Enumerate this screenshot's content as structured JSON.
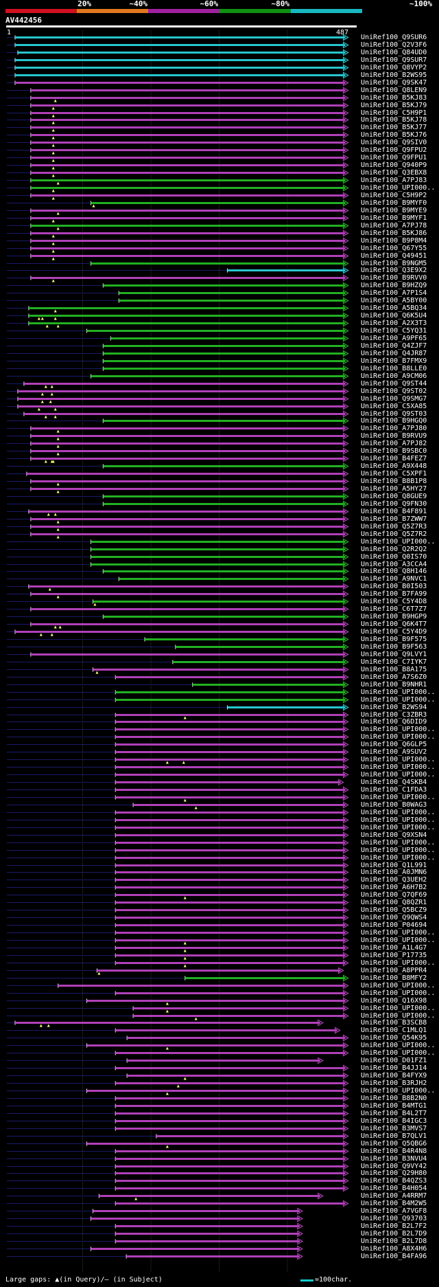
{
  "legend": {
    "labels": [
      "20%",
      "~40%",
      "~60%",
      "~80%",
      "~100%"
    ],
    "colors": [
      "#d01020",
      "#e07820",
      "#a020a0",
      "#119011",
      "#18b8c0"
    ]
  },
  "query": {
    "id": "AV442456",
    "start": "1",
    "end": "487"
  },
  "footer": {
    "gaps_text": "Large gaps: ▲(in Query)/– (in Subject)",
    "scale_text": "=100char."
  },
  "hits": [
    {
      "id": "UniRef100_Q9SUR6",
      "s": 1,
      "e": 487,
      "c": "c"
    },
    {
      "id": "UniRef100_Q2V3F6",
      "s": 1,
      "e": 487,
      "c": "c"
    },
    {
      "id": "UniRef100_Q84UD0",
      "s": 5,
      "e": 487,
      "c": "c"
    },
    {
      "id": "UniRef100_Q9SUR7",
      "s": 1,
      "e": 487,
      "c": "c"
    },
    {
      "id": "UniRef100_Q8VYP2",
      "s": 1,
      "e": 487,
      "c": "c"
    },
    {
      "id": "UniRef100_B2WS95",
      "s": 1,
      "e": 487,
      "c": "c"
    },
    {
      "id": "UniRef100_Q9SK47",
      "s": 1,
      "e": 487,
      "c": "p"
    },
    {
      "id": "UniRef100_Q8LEN9",
      "s": 24,
      "e": 487,
      "c": "p"
    },
    {
      "id": "UniRef100_B5KJ83",
      "s": 24,
      "e": 487,
      "c": "p",
      "g": [
        60
      ]
    },
    {
      "id": "UniRef100_B5KJ79",
      "s": 24,
      "e": 487,
      "c": "p",
      "g": [
        57
      ]
    },
    {
      "id": "UniRef100_C5H9P1",
      "s": 24,
      "e": 487,
      "c": "p",
      "g": [
        57
      ]
    },
    {
      "id": "UniRef100_B5KJ78",
      "s": 24,
      "e": 487,
      "c": "p",
      "g": [
        57
      ]
    },
    {
      "id": "UniRef100_B5KJ77",
      "s": 24,
      "e": 487,
      "c": "p",
      "g": [
        57
      ]
    },
    {
      "id": "UniRef100_B5KJ76",
      "s": 24,
      "e": 487,
      "c": "p",
      "g": [
        57
      ]
    },
    {
      "id": "UniRef100_Q9SIV0",
      "s": 24,
      "e": 487,
      "c": "p",
      "g": [
        57
      ]
    },
    {
      "id": "UniRef100_Q9FPU2",
      "s": 24,
      "e": 487,
      "c": "p",
      "g": [
        57
      ]
    },
    {
      "id": "UniRef100_Q9FPU1",
      "s": 24,
      "e": 487,
      "c": "p",
      "g": [
        57
      ]
    },
    {
      "id": "UniRef100_Q940P9",
      "s": 24,
      "e": 487,
      "c": "p",
      "g": [
        57
      ]
    },
    {
      "id": "UniRef100_Q3EBX8",
      "s": 24,
      "e": 487,
      "c": "p",
      "g": [
        57
      ]
    },
    {
      "id": "UniRef100_A7PJ83",
      "s": 24,
      "e": 487,
      "c": "g",
      "g": [
        64
      ]
    },
    {
      "id": "UniRef100_UPI000..",
      "s": 24,
      "e": 487,
      "c": "g",
      "g": [
        57
      ]
    },
    {
      "id": "UniRef100_C5H9P2",
      "s": 24,
      "e": 487,
      "c": "p",
      "g": [
        57
      ]
    },
    {
      "id": "UniRef100_B9MYF0",
      "s": 112,
      "e": 487,
      "c": "g",
      "g": [
        116
      ]
    },
    {
      "id": "UniRef100_B9MYE9",
      "s": 24,
      "e": 487,
      "c": "p",
      "g": [
        64
      ]
    },
    {
      "id": "UniRef100_B9MYF1",
      "s": 24,
      "e": 487,
      "c": "p",
      "g": [
        57
      ]
    },
    {
      "id": "UniRef100_A7PJ78",
      "s": 24,
      "e": 487,
      "c": "g",
      "g": [
        64
      ]
    },
    {
      "id": "UniRef100_B5KJ86",
      "s": 24,
      "e": 487,
      "c": "p",
      "g": [
        57
      ]
    },
    {
      "id": "UniRef100_B9P8M4",
      "s": 24,
      "e": 487,
      "c": "p",
      "g": [
        57
      ]
    },
    {
      "id": "UniRef100_Q67Y55",
      "s": 24,
      "e": 487,
      "c": "p",
      "g": [
        57
      ]
    },
    {
      "id": "UniRef100_Q49451",
      "s": 24,
      "e": 487,
      "c": "p",
      "g": [
        57
      ]
    },
    {
      "id": "UniRef100_B9NGM5",
      "s": 112,
      "e": 487,
      "c": "g"
    },
    {
      "id": "UniRef100_Q3E9X2",
      "s": 312,
      "e": 487,
      "c": "c"
    },
    {
      "id": "UniRef100_B9RVV0",
      "s": 24,
      "e": 487,
      "c": "p",
      "g": [
        57
      ]
    },
    {
      "id": "UniRef100_B9HZQ9",
      "s": 130,
      "e": 487,
      "c": "g"
    },
    {
      "id": "UniRef100_A7P1S4",
      "s": 153,
      "e": 487,
      "c": "g"
    },
    {
      "id": "UniRef100_A5BY00",
      "s": 153,
      "e": 487,
      "c": "g"
    },
    {
      "id": "UniRef100_A5BQ34",
      "s": 21,
      "e": 487,
      "c": "g",
      "g": [
        60
      ]
    },
    {
      "id": "UniRef100_Q6K5U4",
      "s": 21,
      "e": 487,
      "c": "g",
      "g": [
        36,
        41,
        60
      ]
    },
    {
      "id": "UniRef100_A2X3T3",
      "s": 21,
      "e": 487,
      "c": "g",
      "g": [
        48,
        64
      ]
    },
    {
      "id": "UniRef100_C5YQ31",
      "s": 106,
      "e": 487,
      "c": "g"
    },
    {
      "id": "UniRef100_A9PF65",
      "s": 141,
      "e": 487,
      "c": "g"
    },
    {
      "id": "UniRef100_Q4ZJF7",
      "s": 130,
      "e": 487,
      "c": "g"
    },
    {
      "id": "UniRef100_Q4JR87",
      "s": 130,
      "e": 487,
      "c": "g"
    },
    {
      "id": "UniRef100_B7FMX9",
      "s": 130,
      "e": 487,
      "c": "g"
    },
    {
      "id": "UniRef100_B8LLE0",
      "s": 130,
      "e": 487,
      "c": "g"
    },
    {
      "id": "UniRef100_A9CM06",
      "s": 112,
      "e": 487,
      "c": "g"
    },
    {
      "id": "UniRef100_Q9ST44",
      "s": 14,
      "e": 487,
      "c": "p",
      "g": [
        46,
        55
      ]
    },
    {
      "id": "UniRef100_Q9ST02",
      "s": 5,
      "e": 487,
      "c": "p",
      "g": [
        41,
        55
      ]
    },
    {
      "id": "UniRef100_Q9SMG7",
      "s": 5,
      "e": 487,
      "c": "p",
      "g": [
        41,
        53
      ]
    },
    {
      "id": "UniRef100_C5XA85",
      "s": 5,
      "e": 487,
      "c": "p",
      "g": [
        36,
        60
      ]
    },
    {
      "id": "UniRef100_Q9ST03",
      "s": 14,
      "e": 487,
      "c": "p",
      "g": [
        46,
        60
      ]
    },
    {
      "id": "UniRef100_B9HGQ0",
      "s": 130,
      "e": 487,
      "c": "g"
    },
    {
      "id": "UniRef100_A7PJ80",
      "s": 24,
      "e": 487,
      "c": "p",
      "g": [
        64
      ]
    },
    {
      "id": "UniRef100_B9RVU9",
      "s": 24,
      "e": 487,
      "c": "p",
      "g": [
        64
      ]
    },
    {
      "id": "UniRef100_A7PJ82",
      "s": 24,
      "e": 487,
      "c": "p",
      "g": [
        64
      ]
    },
    {
      "id": "UniRef100_B9SBC0",
      "s": 24,
      "e": 487,
      "c": "p",
      "g": [
        64
      ]
    },
    {
      "id": "UniRef100_B4FEZ7",
      "s": 24,
      "e": 487,
      "c": "p",
      "g": [
        46,
        55,
        57
      ]
    },
    {
      "id": "UniRef100_A9X448",
      "s": 130,
      "e": 487,
      "c": "g"
    },
    {
      "id": "UniRef100_C5XPF1",
      "s": 18,
      "e": 487,
      "c": "p"
    },
    {
      "id": "UniRef100_B8B1P8",
      "s": 24,
      "e": 487,
      "c": "p",
      "g": [
        64
      ]
    },
    {
      "id": "UniRef100_A5HY27",
      "s": 24,
      "e": 487,
      "c": "p",
      "g": [
        64
      ]
    },
    {
      "id": "UniRef100_Q8GUE9",
      "s": 130,
      "e": 487,
      "c": "g"
    },
    {
      "id": "UniRef100_Q9FN30",
      "s": 130,
      "e": 487,
      "c": "g"
    },
    {
      "id": "UniRef100_B4F891",
      "s": 21,
      "e": 487,
      "c": "p",
      "g": [
        50,
        60
      ]
    },
    {
      "id": "UniRef100_B7ZWW7",
      "s": 24,
      "e": 487,
      "c": "p",
      "g": [
        64
      ]
    },
    {
      "id": "UniRef100_Q5Z7R3",
      "s": 24,
      "e": 487,
      "c": "p",
      "g": [
        64
      ]
    },
    {
      "id": "UniRef100_Q5Z7R2",
      "s": 24,
      "e": 487,
      "c": "p",
      "g": [
        64
      ]
    },
    {
      "id": "UniRef100_UPI000..",
      "s": 112,
      "e": 487,
      "c": "g"
    },
    {
      "id": "UniRef100_Q2R2Q2",
      "s": 112,
      "e": 487,
      "c": "g"
    },
    {
      "id": "UniRef100_Q0IS70",
      "s": 112,
      "e": 487,
      "c": "g"
    },
    {
      "id": "UniRef100_A3CCA4",
      "s": 112,
      "e": 487,
      "c": "g"
    },
    {
      "id": "UniRef100_Q8H146",
      "s": 130,
      "e": 487,
      "c": "g"
    },
    {
      "id": "UniRef100_A9NVC1",
      "s": 153,
      "e": 487,
      "c": "g"
    },
    {
      "id": "UniRef100_B0I503",
      "s": 21,
      "e": 487,
      "c": "p",
      "g": [
        52
      ]
    },
    {
      "id": "UniRef100_B7FA99",
      "s": 24,
      "e": 487,
      "c": "p",
      "g": [
        64
      ]
    },
    {
      "id": "UniRef100_C5Y4D8",
      "s": 115,
      "e": 487,
      "c": "g",
      "g": [
        118
      ]
    },
    {
      "id": "UniRef100_C6T7Z7",
      "s": 24,
      "e": 487,
      "c": "p"
    },
    {
      "id": "UniRef100_B9HGP9",
      "s": 130,
      "e": 487,
      "c": "g"
    },
    {
      "id": "UniRef100_Q6K4T7",
      "s": 24,
      "e": 487,
      "c": "p",
      "g": [
        60,
        67
      ]
    },
    {
      "id": "UniRef100_C5Y4D9",
      "s": 1,
      "e": 487,
      "c": "p",
      "g": [
        39,
        55
      ]
    },
    {
      "id": "UniRef100_B9F575",
      "s": 191,
      "e": 487,
      "c": "g"
    },
    {
      "id": "UniRef100_B9F563",
      "s": 236,
      "e": 487,
      "c": "g"
    },
    {
      "id": "UniRef100_Q9LVY1",
      "s": 24,
      "e": 487,
      "c": "p"
    },
    {
      "id": "UniRef100_C7IYK7",
      "s": 232,
      "e": 487,
      "c": "g"
    },
    {
      "id": "UniRef100_B8A175",
      "s": 115,
      "e": 487,
      "c": "p",
      "g": [
        121
      ]
    },
    {
      "id": "UniRef100_A7S6Z0",
      "s": 148,
      "e": 487,
      "c": "p"
    },
    {
      "id": "UniRef100_B9NHR1",
      "s": 261,
      "e": 487,
      "c": "g"
    },
    {
      "id": "UniRef100_UPI000..",
      "s": 148,
      "e": 487,
      "c": "g"
    },
    {
      "id": "UniRef100_UPI000..",
      "s": 148,
      "e": 487,
      "c": "g"
    },
    {
      "id": "UniRef100_B2WS94",
      "s": 312,
      "e": 487,
      "c": "c"
    },
    {
      "id": "UniRef100_C3ZBR3",
      "s": 148,
      "e": 487,
      "c": "p",
      "g": [
        250
      ]
    },
    {
      "id": "UniRef100_Q6DID9",
      "s": 148,
      "e": 487,
      "c": "p"
    },
    {
      "id": "UniRef100_UPI000..",
      "s": 148,
      "e": 487,
      "c": "p"
    },
    {
      "id": "UniRef100_UPI000..",
      "s": 148,
      "e": 487,
      "c": "p"
    },
    {
      "id": "UniRef100_Q6GLP5",
      "s": 148,
      "e": 487,
      "c": "p"
    },
    {
      "id": "UniRef100_A9SUV2",
      "s": 148,
      "e": 487,
      "c": "p"
    },
    {
      "id": "UniRef100_UPI000..",
      "s": 148,
      "e": 487,
      "c": "p",
      "g": [
        224,
        248
      ]
    },
    {
      "id": "UniRef100_UPI000..",
      "s": 148,
      "e": 487,
      "c": "p"
    },
    {
      "id": "UniRef100_UPI000..",
      "s": 148,
      "e": 487,
      "c": "p"
    },
    {
      "id": "UniRef100_Q4SKB4",
      "s": 148,
      "e": 480,
      "c": "p"
    },
    {
      "id": "UniRef100_C1FDA3",
      "s": 148,
      "e": 487,
      "c": "p"
    },
    {
      "id": "UniRef100_UPI000..",
      "s": 148,
      "e": 487,
      "c": "p",
      "g": [
        250
      ]
    },
    {
      "id": "UniRef100_B0WAG3",
      "s": 174,
      "e": 487,
      "c": "p",
      "g": [
        266
      ]
    },
    {
      "id": "UniRef100_UPI000..",
      "s": 148,
      "e": 487,
      "c": "p"
    },
    {
      "id": "UniRef100_UPI000..",
      "s": 148,
      "e": 487,
      "c": "p"
    },
    {
      "id": "UniRef100_UPI000..",
      "s": 148,
      "e": 487,
      "c": "p"
    },
    {
      "id": "UniRef100_Q9XSN4",
      "s": 148,
      "e": 487,
      "c": "p"
    },
    {
      "id": "UniRef100_UPI000..",
      "s": 148,
      "e": 487,
      "c": "p"
    },
    {
      "id": "UniRef100_UPI000..",
      "s": 148,
      "e": 487,
      "c": "p"
    },
    {
      "id": "UniRef100_UPI000..",
      "s": 148,
      "e": 487,
      "c": "p"
    },
    {
      "id": "UniRef100_Q1L991",
      "s": 148,
      "e": 487,
      "c": "p"
    },
    {
      "id": "UniRef100_A0JMN6",
      "s": 148,
      "e": 487,
      "c": "p"
    },
    {
      "id": "UniRef100_Q3UEH2",
      "s": 148,
      "e": 487,
      "c": "p"
    },
    {
      "id": "UniRef100_A6H7B2",
      "s": 148,
      "e": 487,
      "c": "p"
    },
    {
      "id": "UniRef100_Q7QF69",
      "s": 148,
      "e": 487,
      "c": "p",
      "g": [
        250
      ]
    },
    {
      "id": "UniRef100_Q8QZR1",
      "s": 148,
      "e": 487,
      "c": "p"
    },
    {
      "id": "UniRef100_Q5BCZ9",
      "s": 148,
      "e": 487,
      "c": "p"
    },
    {
      "id": "UniRef100_Q9QWS4",
      "s": 148,
      "e": 487,
      "c": "p"
    },
    {
      "id": "UniRef100_P04694",
      "s": 148,
      "e": 487,
      "c": "p"
    },
    {
      "id": "UniRef100_UPI000..",
      "s": 148,
      "e": 487,
      "c": "p"
    },
    {
      "id": "UniRef100_UPI000..",
      "s": 148,
      "e": 487,
      "c": "p",
      "g": [
        250
      ]
    },
    {
      "id": "UniRef100_A1L4G7",
      "s": 148,
      "e": 487,
      "c": "p",
      "g": [
        250
      ]
    },
    {
      "id": "UniRef100_P17735",
      "s": 148,
      "e": 487,
      "c": "p",
      "g": [
        250
      ]
    },
    {
      "id": "UniRef100_UPI000..",
      "s": 148,
      "e": 487,
      "c": "p",
      "g": [
        250
      ]
    },
    {
      "id": "UniRef100_A8PPR4",
      "s": 121,
      "e": 480,
      "c": "p",
      "g": [
        124
      ]
    },
    {
      "id": "UniRef100_B8MFY2",
      "s": 250,
      "e": 487,
      "c": "g"
    },
    {
      "id": "UniRef100_UPI000..",
      "s": 64,
      "e": 487,
      "c": "p"
    },
    {
      "id": "UniRef100_UPI000..",
      "s": 148,
      "e": 487,
      "c": "p"
    },
    {
      "id": "UniRef100_Q16X98",
      "s": 106,
      "e": 487,
      "c": "p",
      "g": [
        224
      ]
    },
    {
      "id": "UniRef100_UPI000..",
      "s": 174,
      "e": 487,
      "c": "p",
      "g": [
        224
      ]
    },
    {
      "id": "UniRef100_UPI000..",
      "s": 174,
      "e": 487,
      "c": "p",
      "g": [
        266
      ]
    },
    {
      "id": "UniRef100_B3SCB8",
      "s": 1,
      "e": 450,
      "c": "p",
      "g": [
        39,
        50
      ]
    },
    {
      "id": "UniRef100_C1MLQ1",
      "s": 148,
      "e": 475,
      "c": "p"
    },
    {
      "id": "UniRef100_Q54K95",
      "s": 165,
      "e": 487,
      "c": "p"
    },
    {
      "id": "UniRef100_UPI000..",
      "s": 106,
      "e": 487,
      "c": "p",
      "g": [
        224
      ]
    },
    {
      "id": "UniRef100_UPI000..",
      "s": 148,
      "e": 487,
      "c": "p"
    },
    {
      "id": "UniRef100_D01FZ1",
      "s": 165,
      "e": 450,
      "c": "p"
    },
    {
      "id": "UniRef100_B4JJ14",
      "s": 148,
      "e": 487,
      "c": "p"
    },
    {
      "id": "UniRef100_B4FYX9",
      "s": 165,
      "e": 487,
      "c": "p",
      "g": [
        250
      ]
    },
    {
      "id": "UniRef100_B3RJH2",
      "s": 148,
      "e": 487,
      "c": "p",
      "g": [
        240
      ]
    },
    {
      "id": "UniRef100_UPI000..",
      "s": 106,
      "e": 487,
      "c": "p",
      "g": [
        224
      ]
    },
    {
      "id": "UniRef100_B8B2N0",
      "s": 148,
      "e": 487,
      "c": "p"
    },
    {
      "id": "UniRef100_B4MTG1",
      "s": 148,
      "e": 487,
      "c": "p"
    },
    {
      "id": "UniRef100_B4L2T7",
      "s": 148,
      "e": 487,
      "c": "p"
    },
    {
      "id": "UniRef100_B4IGC3",
      "s": 148,
      "e": 487,
      "c": "p"
    },
    {
      "id": "UniRef100_B3MVS7",
      "s": 148,
      "e": 487,
      "c": "p"
    },
    {
      "id": "UniRef100_B7QLV1",
      "s": 208,
      "e": 487,
      "c": "p"
    },
    {
      "id": "UniRef100_Q5QBG6",
      "s": 106,
      "e": 487,
      "c": "p",
      "g": [
        224
      ]
    },
    {
      "id": "UniRef100_B4R4N8",
      "s": 148,
      "e": 487,
      "c": "p"
    },
    {
      "id": "UniRef100_B3NVU4",
      "s": 148,
      "e": 487,
      "c": "p"
    },
    {
      "id": "UniRef100_Q9VY42",
      "s": 148,
      "e": 487,
      "c": "p"
    },
    {
      "id": "UniRef100_Q29H80",
      "s": 148,
      "e": 487,
      "c": "p"
    },
    {
      "id": "UniRef100_B4QZS3",
      "s": 148,
      "e": 487,
      "c": "p"
    },
    {
      "id": "UniRef100_B4H054",
      "s": 148,
      "e": 487,
      "c": "p"
    },
    {
      "id": "UniRef100_A4RRM7",
      "s": 124,
      "e": 450,
      "c": "p",
      "g": [
        178
      ]
    },
    {
      "id": "UniRef100_B4M2W5",
      "s": 148,
      "e": 487,
      "c": "p"
    },
    {
      "id": "UniRef100_A7VGF8",
      "s": 115,
      "e": 420,
      "c": "p"
    },
    {
      "id": "UniRef100_Q93703",
      "s": 112,
      "e": 420,
      "c": "p"
    },
    {
      "id": "UniRef100_B2L7F2",
      "s": 148,
      "e": 420,
      "c": "p"
    },
    {
      "id": "UniRef100_B2L7D9",
      "s": 148,
      "e": 420,
      "c": "p"
    },
    {
      "id": "UniRef100_B2L7D8",
      "s": 148,
      "e": 420,
      "c": "p"
    },
    {
      "id": "UniRef100_A8X4H6",
      "s": 112,
      "e": 420,
      "c": "p"
    },
    {
      "id": "UniRef100_B4FA96",
      "s": 164,
      "e": 420,
      "c": "p"
    }
  ]
}
